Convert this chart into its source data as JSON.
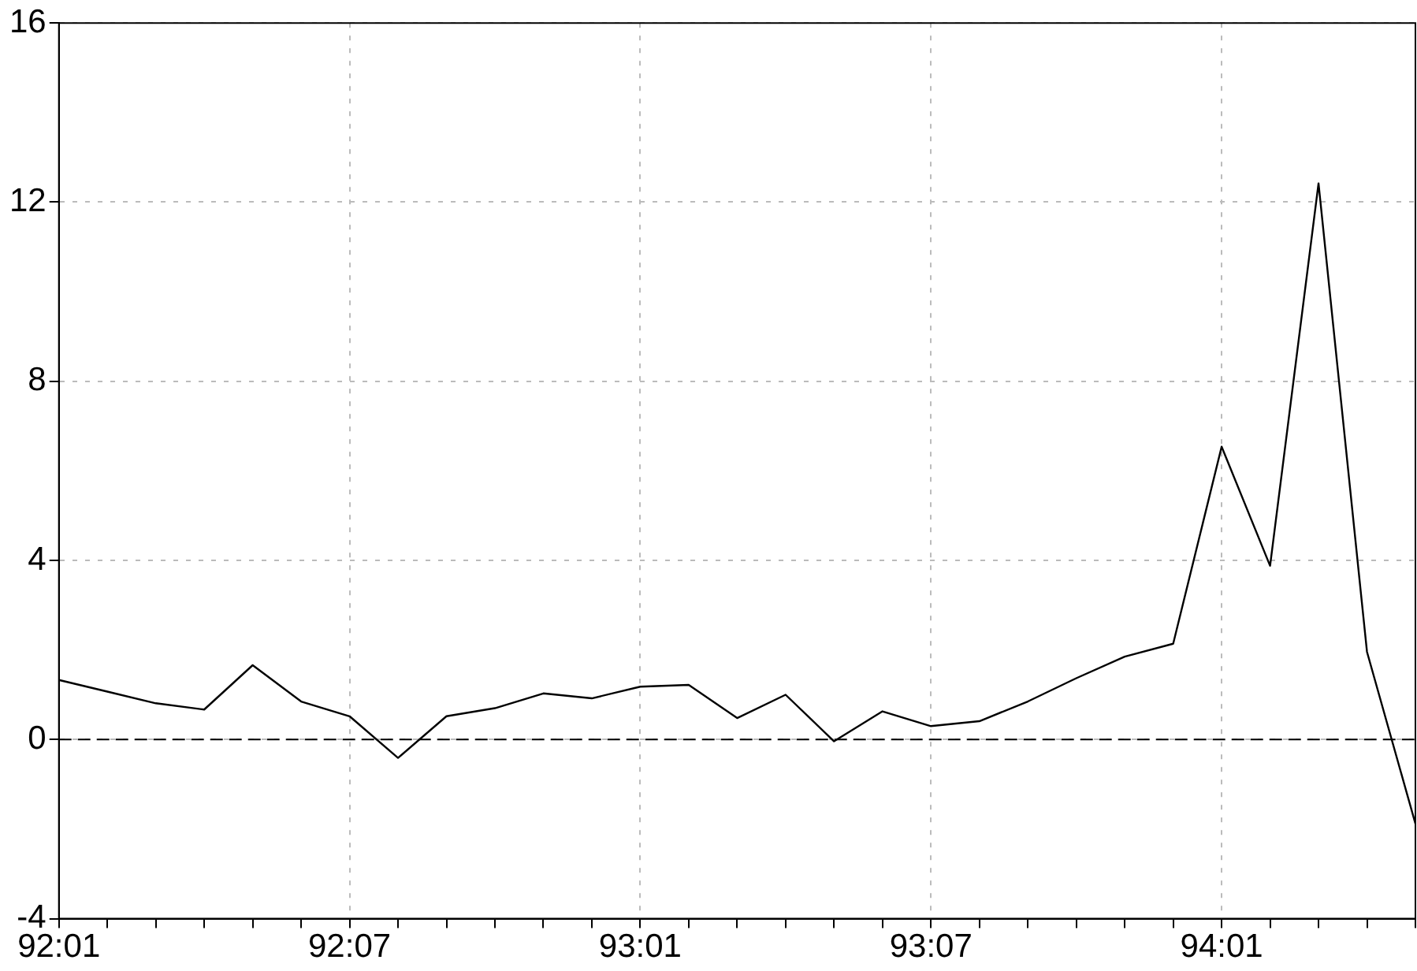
{
  "chart_data": {
    "type": "line",
    "categories": [
      "92:01",
      null,
      null,
      null,
      null,
      null,
      "92:07",
      null,
      null,
      null,
      null,
      null,
      "93:01",
      null,
      null,
      null,
      null,
      null,
      "93:07",
      null,
      null,
      null,
      null,
      null,
      "94:01",
      null,
      null,
      null,
      null
    ],
    "series": [
      {
        "color": "#000000",
        "values": [
          1.33,
          1.07,
          0.81,
          0.67,
          1.66,
          0.85,
          0.52,
          -0.41,
          0.52,
          0.7,
          1.03,
          0.92,
          1.18,
          1.22,
          0.48,
          1.0,
          -0.04,
          0.63,
          0.3,
          0.41,
          0.85,
          1.37,
          1.85,
          2.14,
          6.54,
          3.88,
          12.42,
          1.96,
          -1.88
        ]
      }
    ],
    "ylim": [
      -4,
      16
    ],
    "yticks": [
      -4,
      0,
      4,
      8,
      12,
      16
    ],
    "grid": true,
    "marker": "none",
    "line_style": "solid",
    "ref_lines": [
      {
        "axis": "y",
        "value": 0,
        "line_style": "dashed",
        "color": "#000000"
      }
    ]
  }
}
